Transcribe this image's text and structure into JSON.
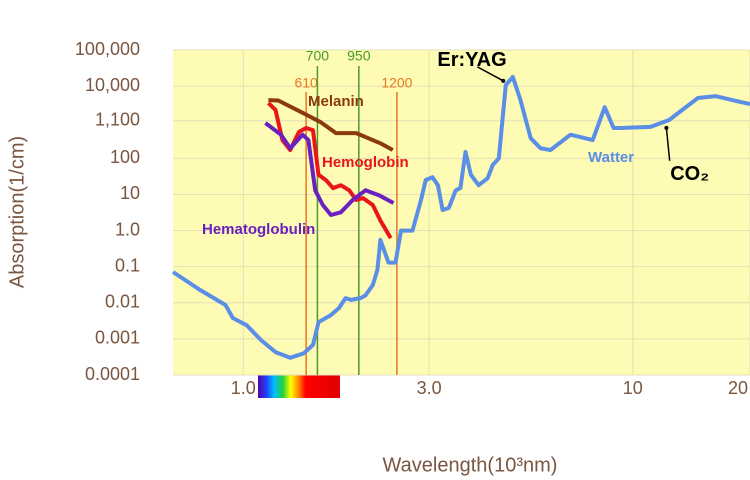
{
  "chart_data": {
    "type": "line",
    "x_label": "Wavelength(10³nm)",
    "y_label": "Absorption(1/cm)",
    "xlim": [
      0.66,
      20
    ],
    "ylim": [
      0.0001,
      100000
    ],
    "log_x": true,
    "log_y": true,
    "grid": true,
    "xticks": [
      {
        "value": 1,
        "label": "1.0"
      },
      {
        "value": 3,
        "label": "3.0"
      },
      10,
      20
    ],
    "yticks": [
      {
        "value": 100000,
        "label": "100,000"
      },
      {
        "value": 10000,
        "label": "10,000"
      },
      {
        "value": 1100,
        "label": "1,100"
      },
      100,
      10,
      {
        "value": 1,
        "label": "1.0"
      },
      0.1,
      0.01,
      0.001,
      0.0001
    ],
    "series": [
      {
        "name": "Watter",
        "color": "#5b8ee6",
        "x": [
          0.66,
          0.778,
          0.9,
          0.94,
          1.02,
          1.11,
          1.21,
          1.32,
          1.43,
          1.51,
          1.56,
          1.68,
          1.76,
          1.83,
          1.89,
          2.0,
          2.06,
          2.15,
          2.21,
          2.25,
          2.36,
          2.46,
          2.54,
          2.72,
          2.86,
          2.94,
          3.06,
          3.16,
          3.25,
          3.37,
          3.51,
          3.61,
          3.72,
          3.84,
          4.02,
          4.24,
          4.37,
          4.53,
          4.72,
          4.92,
          5.15,
          5.47,
          5.8,
          6.15,
          6.92,
          7.89,
          8.47,
          8.93,
          9.31,
          11.1,
          12.4,
          14.7,
          16.3,
          18.4,
          20
        ],
        "values": [
          0.071,
          0.022,
          0.0087,
          0.0038,
          0.0024,
          0.00093,
          0.00043,
          0.0003,
          0.0004,
          0.00068,
          0.0029,
          0.0046,
          0.0071,
          0.0135,
          0.012,
          0.0135,
          0.016,
          0.031,
          0.081,
          0.55,
          0.13,
          0.13,
          1,
          1,
          7,
          25,
          30,
          18,
          3.7,
          4.2,
          13,
          15,
          150,
          35,
          18,
          28,
          65,
          100,
          10700,
          18000,
          4100,
          360,
          190,
          170,
          450,
          320,
          2600,
          690,
          690,
          740,
          1150,
          4700,
          5300,
          3900,
          3200
        ]
      },
      {
        "name": "Melanin",
        "color": "#8b3a0f",
        "x": [
          1.16,
          1.23,
          1.41,
          1.58,
          1.73,
          1.95,
          2.25,
          2.42
        ],
        "values": [
          4100,
          4000,
          1900,
          1000,
          500,
          500,
          260,
          170
        ]
      },
      {
        "name": "Hemoglobin",
        "color": "#e8151b",
        "x": [
          1.16,
          1.21,
          1.26,
          1.32,
          1.39,
          1.45,
          1.51,
          1.56,
          1.63,
          1.7,
          1.78,
          1.87,
          1.95,
          2.03,
          2.15,
          2.25,
          2.39
        ],
        "values": [
          3400,
          2200,
          320,
          170,
          540,
          690,
          600,
          35,
          25,
          15,
          18,
          13,
          7,
          7.9,
          5.1,
          1.9,
          0.62
        ]
      },
      {
        "name": "Hematoglobulin",
        "color": "#6a1fc0",
        "x": [
          1.14,
          1.25,
          1.32,
          1.42,
          1.47,
          1.53,
          1.6,
          1.68,
          1.78,
          1.91,
          2.06,
          2.23,
          2.43
        ],
        "values": [
          950,
          450,
          190,
          450,
          320,
          13,
          5.1,
          2.7,
          3.2,
          7,
          13,
          9.5,
          5.8
        ]
      }
    ],
    "vlines": [
      {
        "label": "610",
        "x": 1.45,
        "color": "#e87722"
      },
      {
        "label": "700",
        "x": 1.55,
        "color": "#4c9a2a"
      },
      {
        "label": "950",
        "x": 1.98,
        "color": "#4c9a2a"
      },
      {
        "label": "1200",
        "x": 2.48,
        "color": "#e87722"
      }
    ],
    "annotations": [
      {
        "text": "Er:YAG",
        "x": 3.15,
        "y": 50000,
        "to_x": 4.65,
        "to_y": 14000
      },
      {
        "text": "CO₂",
        "x": 14,
        "y": 35,
        "to_x": 12.2,
        "to_y": 700
      }
    ]
  }
}
